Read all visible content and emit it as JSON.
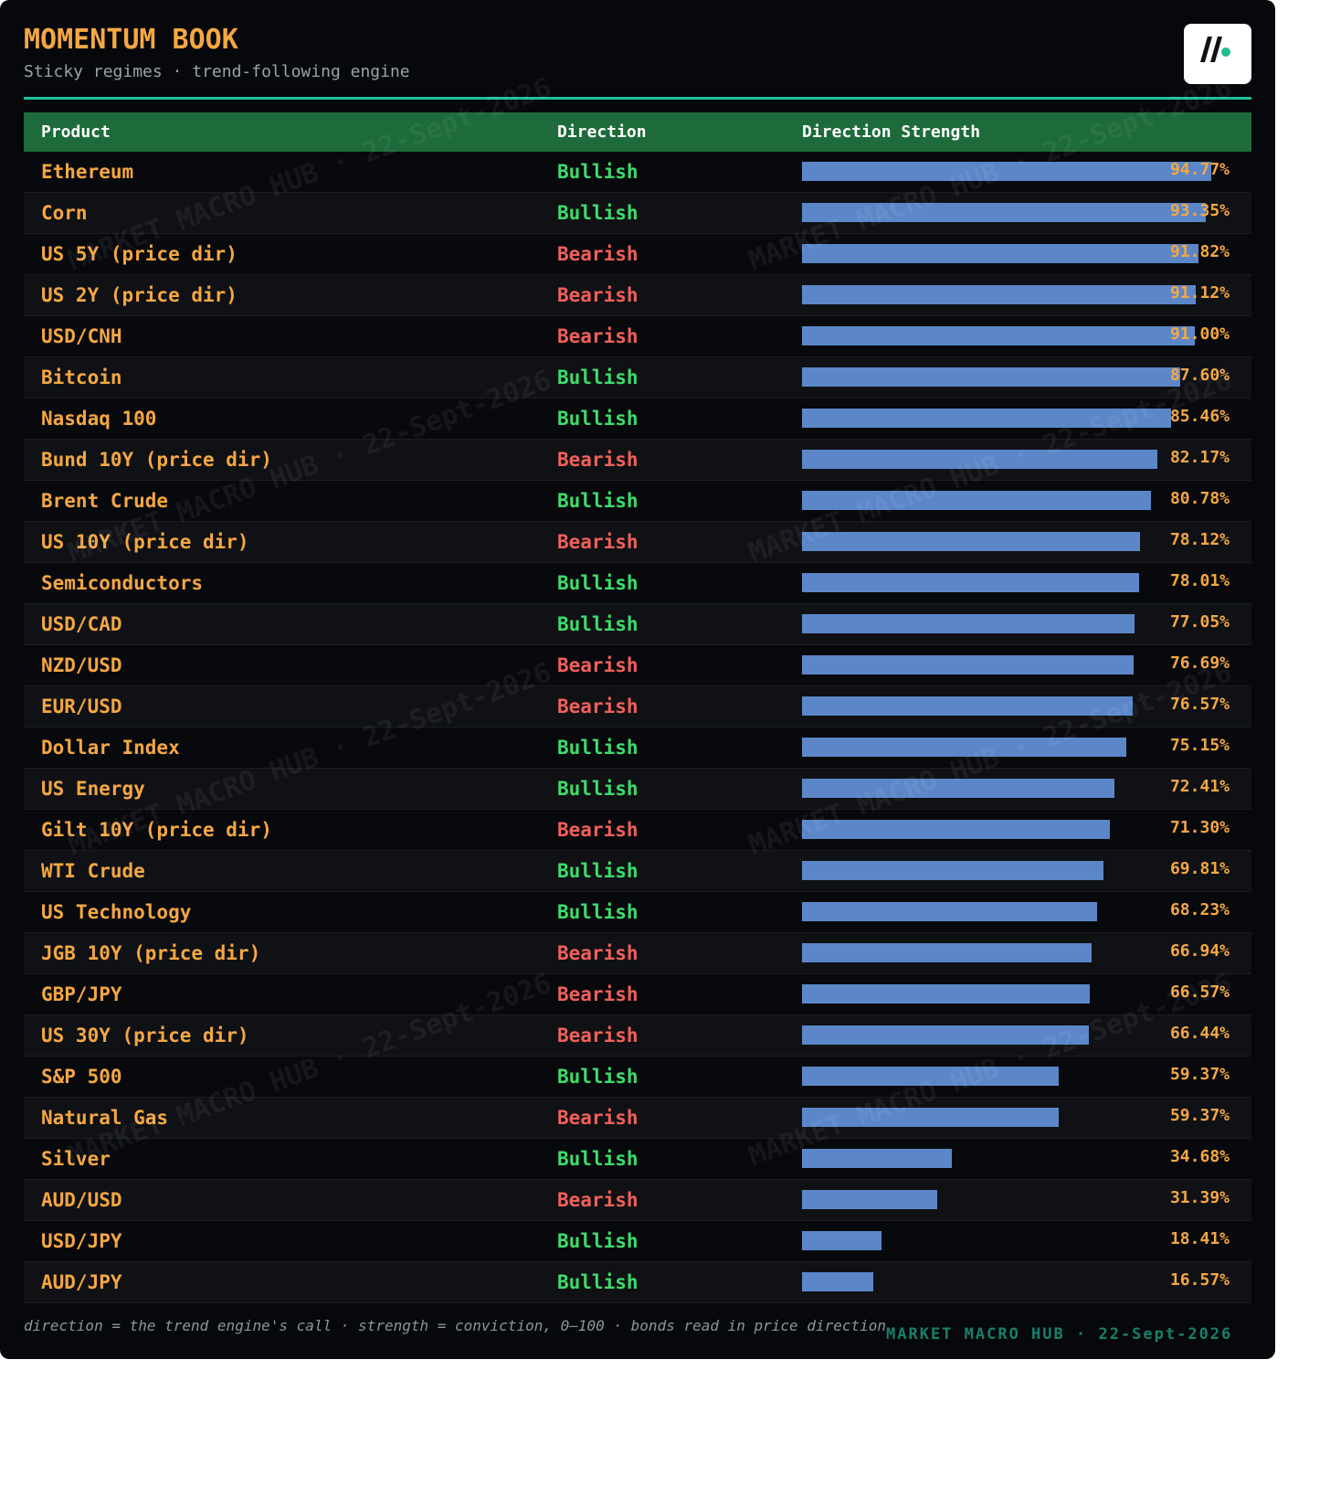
{
  "header": {
    "title": "MOMENTUM BOOK",
    "subtitle": "Sticky regimes · trend-following engine"
  },
  "table": {
    "columns": [
      "Product",
      "Direction",
      "Direction Strength"
    ],
    "strength_range": [
      0,
      100
    ],
    "rows": [
      {
        "product": "Ethereum",
        "direction": "Bullish",
        "strength": 94.77,
        "strength_label": "94.77%"
      },
      {
        "product": "Corn",
        "direction": "Bullish",
        "strength": 93.35,
        "strength_label": "93.35%"
      },
      {
        "product": "US 5Y (price dir)",
        "direction": "Bearish",
        "strength": 91.82,
        "strength_label": "91.82%"
      },
      {
        "product": "US 2Y (price dir)",
        "direction": "Bearish",
        "strength": 91.12,
        "strength_label": "91.12%"
      },
      {
        "product": "USD/CNH",
        "direction": "Bearish",
        "strength": 91.0,
        "strength_label": "91.00%"
      },
      {
        "product": "Bitcoin",
        "direction": "Bullish",
        "strength": 87.6,
        "strength_label": "87.60%"
      },
      {
        "product": "Nasdaq 100",
        "direction": "Bullish",
        "strength": 85.46,
        "strength_label": "85.46%"
      },
      {
        "product": "Bund 10Y (price dir)",
        "direction": "Bearish",
        "strength": 82.17,
        "strength_label": "82.17%"
      },
      {
        "product": "Brent Crude",
        "direction": "Bullish",
        "strength": 80.78,
        "strength_label": "80.78%"
      },
      {
        "product": "US 10Y (price dir)",
        "direction": "Bearish",
        "strength": 78.12,
        "strength_label": "78.12%"
      },
      {
        "product": "Semiconductors",
        "direction": "Bullish",
        "strength": 78.01,
        "strength_label": "78.01%"
      },
      {
        "product": "USD/CAD",
        "direction": "Bullish",
        "strength": 77.05,
        "strength_label": "77.05%"
      },
      {
        "product": "NZD/USD",
        "direction": "Bearish",
        "strength": 76.69,
        "strength_label": "76.69%"
      },
      {
        "product": "EUR/USD",
        "direction": "Bearish",
        "strength": 76.57,
        "strength_label": "76.57%"
      },
      {
        "product": "Dollar Index",
        "direction": "Bullish",
        "strength": 75.15,
        "strength_label": "75.15%"
      },
      {
        "product": "US Energy",
        "direction": "Bullish",
        "strength": 72.41,
        "strength_label": "72.41%"
      },
      {
        "product": "Gilt 10Y (price dir)",
        "direction": "Bearish",
        "strength": 71.3,
        "strength_label": "71.30%"
      },
      {
        "product": "WTI Crude",
        "direction": "Bullish",
        "strength": 69.81,
        "strength_label": "69.81%"
      },
      {
        "product": "US Technology",
        "direction": "Bullish",
        "strength": 68.23,
        "strength_label": "68.23%"
      },
      {
        "product": "JGB 10Y (price dir)",
        "direction": "Bearish",
        "strength": 66.94,
        "strength_label": "66.94%"
      },
      {
        "product": "GBP/JPY",
        "direction": "Bearish",
        "strength": 66.57,
        "strength_label": "66.57%"
      },
      {
        "product": "US 30Y (price dir)",
        "direction": "Bearish",
        "strength": 66.44,
        "strength_label": "66.44%"
      },
      {
        "product": "S&P 500",
        "direction": "Bullish",
        "strength": 59.37,
        "strength_label": "59.37%"
      },
      {
        "product": "Natural Gas",
        "direction": "Bearish",
        "strength": 59.37,
        "strength_label": "59.37%"
      },
      {
        "product": "Silver",
        "direction": "Bullish",
        "strength": 34.68,
        "strength_label": "34.68%"
      },
      {
        "product": "AUD/USD",
        "direction": "Bearish",
        "strength": 31.39,
        "strength_label": "31.39%"
      },
      {
        "product": "USD/JPY",
        "direction": "Bullish",
        "strength": 18.41,
        "strength_label": "18.41%"
      },
      {
        "product": "AUD/JPY",
        "direction": "Bullish",
        "strength": 16.57,
        "strength_label": "16.57%"
      }
    ]
  },
  "footer": {
    "note": "direction = the trend engine's call · strength = conviction, 0–100 · bonds read in price direction",
    "brand": "MARKET MACRO HUB · 22-Sept-2026"
  }
}
